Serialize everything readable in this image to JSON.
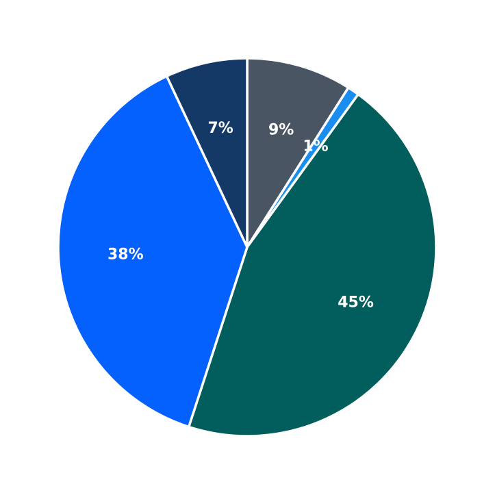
{
  "chart_data": {
    "type": "pie",
    "start_angle_deg": 0,
    "direction": "clockwise",
    "slices": [
      {
        "value": 9,
        "label": "9%",
        "color": "#4a5563"
      },
      {
        "value": 1,
        "label": "1%",
        "color": "#1a8ef0"
      },
      {
        "value": 45,
        "label": "45%",
        "color": "#025e5c"
      },
      {
        "value": 38,
        "label": "38%",
        "color": "#0461fd"
      },
      {
        "value": 7,
        "label": "7%",
        "color": "#143966"
      }
    ]
  }
}
